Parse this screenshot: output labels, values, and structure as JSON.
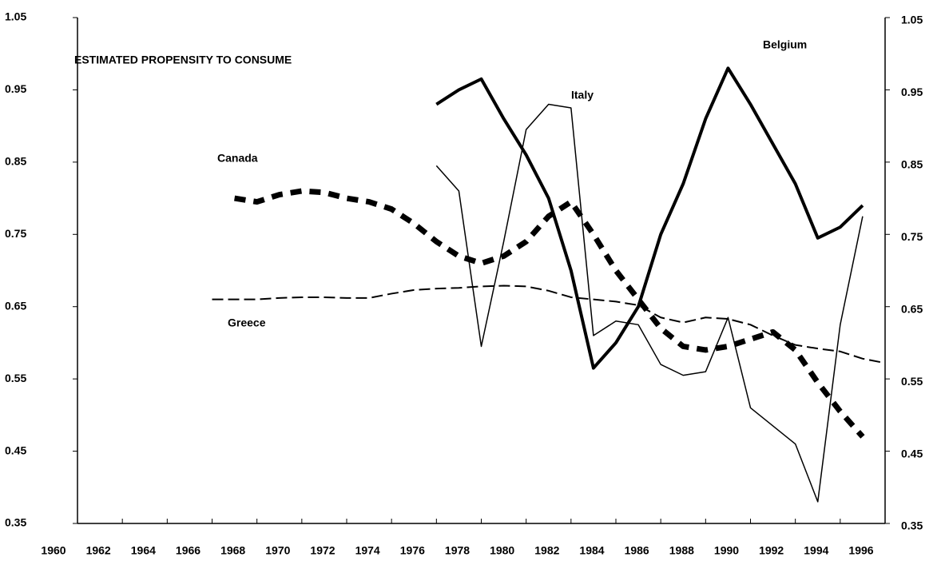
{
  "chart_data": {
    "type": "line",
    "title": "ESTIMATED PROPENSITY TO CONSUME",
    "x": [
      1966,
      1967,
      1968,
      1969,
      1970,
      1971,
      1972,
      1973,
      1974,
      1975,
      1976,
      1977,
      1978,
      1979,
      1980,
      1981,
      1982,
      1983,
      1984,
      1985,
      1986,
      1987,
      1988,
      1989,
      1990,
      1991,
      1992,
      1993,
      1994,
      1995,
      1996
    ],
    "series": [
      {
        "name": "Belgium",
        "color": "#000000",
        "values": [
          null,
          null,
          null,
          null,
          null,
          null,
          null,
          null,
          null,
          null,
          0.93,
          0.95,
          0.965,
          0.91,
          0.86,
          0.8,
          0.7,
          0.565,
          0.6,
          0.65,
          0.75,
          0.82,
          0.91,
          0.98,
          0.93,
          0.875,
          0.82,
          0.745,
          0.76,
          0.79,
          null
        ]
      },
      {
        "name": "Italy",
        "color": "#000000",
        "values": [
          null,
          null,
          null,
          null,
          null,
          null,
          null,
          null,
          null,
          null,
          0.845,
          0.81,
          0.595,
          0.74,
          0.895,
          0.93,
          0.925,
          0.61,
          0.63,
          0.625,
          0.57,
          0.555,
          0.56,
          0.635,
          0.51,
          0.485,
          0.46,
          0.38,
          0.625,
          0.775,
          null
        ]
      },
      {
        "name": "Canada",
        "color": "#000000",
        "values": [
          null,
          0.8,
          0.795,
          0.805,
          0.81,
          0.808,
          0.8,
          0.795,
          0.785,
          0.765,
          0.74,
          0.72,
          0.71,
          0.72,
          0.74,
          0.775,
          0.795,
          0.75,
          0.7,
          0.66,
          0.62,
          0.595,
          0.59,
          0.595,
          0.605,
          0.615,
          0.59,
          0.545,
          0.505,
          0.47,
          null
        ]
      },
      {
        "name": "Greece",
        "color": "#000000",
        "values": [
          0.66,
          0.66,
          0.66,
          0.662,
          0.663,
          0.663,
          0.662,
          0.662,
          0.668,
          0.673,
          0.675,
          0.676,
          0.678,
          0.679,
          0.678,
          0.672,
          0.663,
          0.66,
          0.657,
          0.652,
          0.635,
          0.628,
          0.635,
          0.633,
          0.625,
          0.61,
          0.597,
          0.592,
          0.588,
          0.578,
          0.572
        ]
      }
    ],
    "xlim": [
      1960,
      1996
    ],
    "xticks": [
      1960,
      1962,
      1964,
      1966,
      1968,
      1970,
      1972,
      1974,
      1976,
      1978,
      1980,
      1982,
      1984,
      1986,
      1988,
      1990,
      1992,
      1994,
      1996
    ],
    "ylim": [
      0.35,
      1.05
    ],
    "yticks": [
      0.35,
      0.45,
      0.55,
      0.65,
      0.75,
      0.85,
      0.95,
      1.05
    ],
    "y2lim": [
      0.35,
      1.05
    ],
    "y2ticks": [
      0.35,
      0.45,
      0.55,
      0.65,
      0.75,
      0.85,
      0.95,
      1.05
    ],
    "grid": false
  }
}
